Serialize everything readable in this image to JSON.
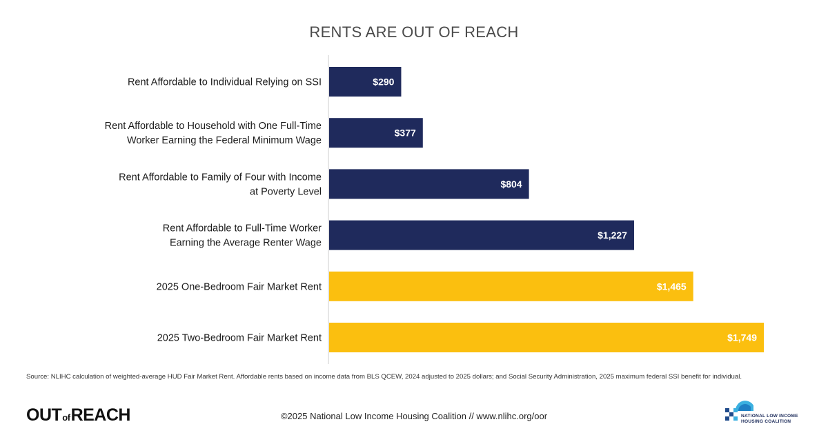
{
  "chart_data": {
    "type": "bar",
    "orientation": "horizontal",
    "title": "RENTS ARE OUT OF REACH",
    "categories": [
      "Rent Affordable to Individual Relying on SSI",
      "Rent Affordable to Household with One Full-Time Worker Earning the Federal Minimum Wage",
      "Rent Affordable to Family of Four with Income at Poverty Level",
      "Rent Affordable to Full-Time Worker Earning the Average Renter Wage",
      "2025 One-Bedroom Fair Market Rent",
      "2025 Two-Bedroom Fair Market Rent"
    ],
    "category_lines": [
      [
        "Rent Affordable to Individual Relying on SSI"
      ],
      [
        "Rent Affordable to Household with One Full-Time",
        "Worker Earning the Federal Minimum Wage"
      ],
      [
        "Rent Affordable to Family of Four with Income",
        "at Poverty Level"
      ],
      [
        "Rent Affordable to Full-Time Worker",
        "Earning the Average Renter Wage"
      ],
      [
        "2025 One-Bedroom Fair Market Rent"
      ],
      [
        "2025 Two-Bedroom Fair Market Rent"
      ]
    ],
    "values": [
      290,
      377,
      804,
      1227,
      1465,
      1749
    ],
    "value_labels": [
      "$290",
      "$377",
      "$804",
      "$1,227",
      "$1,465",
      "$1,749"
    ],
    "bar_colors": [
      "#1f2a5c",
      "#1f2a5c",
      "#1f2a5c",
      "#1f2a5c",
      "#fbbf0f",
      "#fbbf0f"
    ],
    "xlim": [
      0,
      1749
    ],
    "grid": false,
    "legend": "none"
  },
  "source": "Source: NLIHC calculation of weighted-average HUD Fair Market Rent. Affordable rents based on income data from BLS QCEW, 2024 adjusted to 2025 dollars; and Social Security Administration, 2025 maximum federal SSI benefit for individual.",
  "footer": "©2025 National Low Income Housing Coalition // www.nlihc.org/oor",
  "logo_left": {
    "part1": "OUT",
    "part2": "of",
    "part3": "REACH"
  },
  "logo_right": {
    "line1": "NATIONAL LOW INCOME",
    "line2": "HOUSING COALITION"
  },
  "colors": {
    "navy": "#1f2a5c",
    "gold": "#fbbf0f",
    "axis": "#cccccc"
  }
}
